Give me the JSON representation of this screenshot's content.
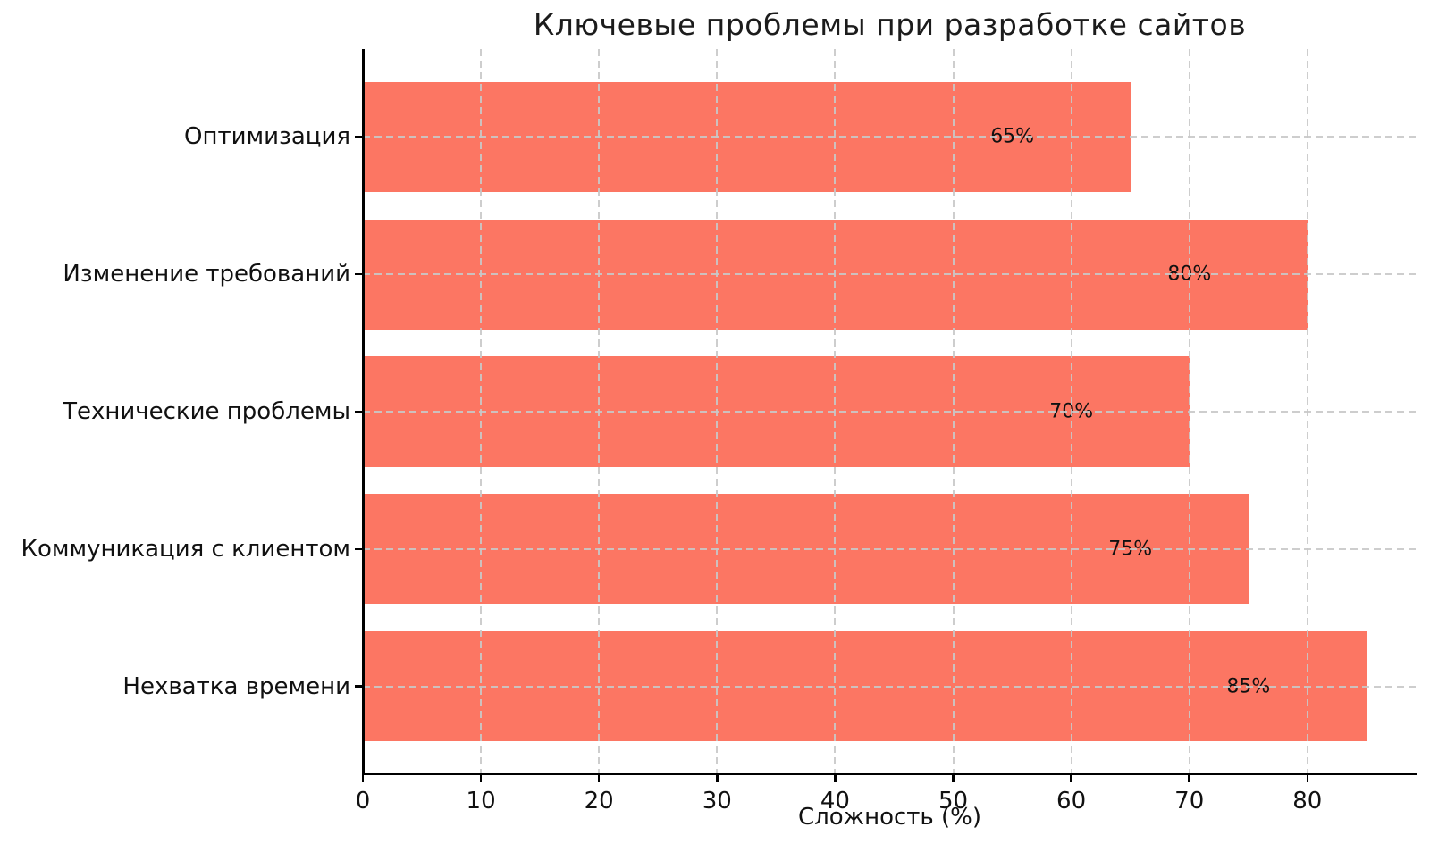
{
  "chart_data": {
    "type": "bar",
    "orientation": "horizontal",
    "title": "Ключевые проблемы при разработке сайтов",
    "xlabel": "Сложность (%)",
    "ylabel": "",
    "categories": [
      "Оптимизация",
      "Изменение требований",
      "Технические проблемы",
      "Коммуникация с клиентом",
      "Нехватка времени"
    ],
    "values": [
      65,
      80,
      70,
      75,
      85
    ],
    "bar_labels": [
      "65%",
      "80%",
      "70%",
      "75%",
      "85%"
    ],
    "xticks": [
      0,
      10,
      20,
      30,
      40,
      50,
      60,
      70,
      80
    ],
    "xlim": [
      0,
      89.25
    ],
    "grid": true,
    "grid_style": "dashed",
    "legend": "none",
    "bar_color": "#fc7663",
    "grid_color": "rgba(200,200,200,0.9)",
    "axis_color": "#000000",
    "text_color": "#111111",
    "background": "#ffffff"
  }
}
